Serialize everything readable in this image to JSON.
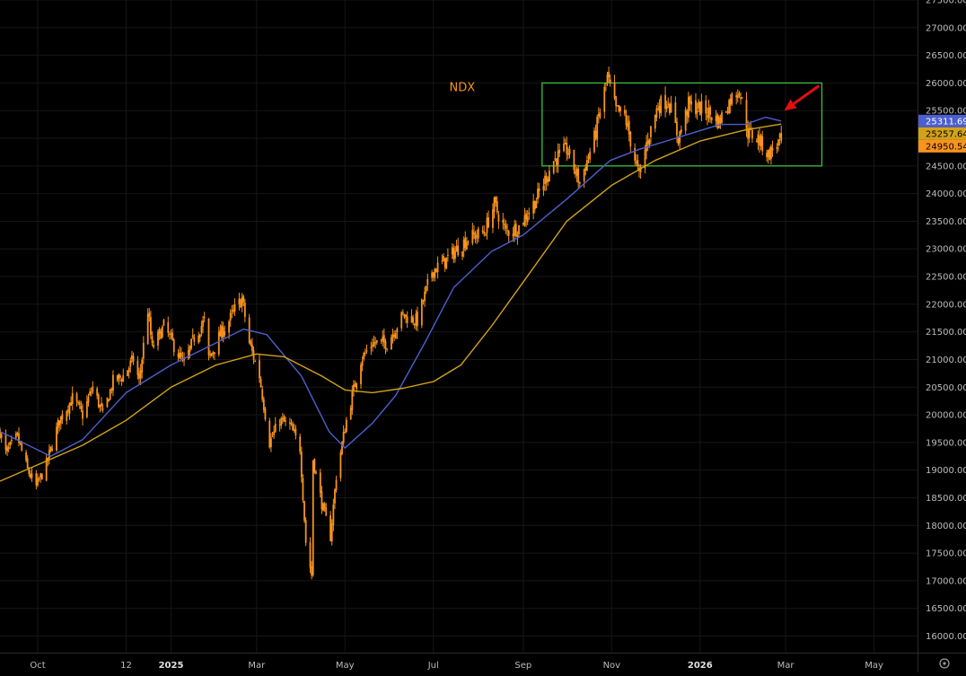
{
  "chart_data": {
    "type": "candlestick",
    "title": "NDX",
    "ylim": [
      15700,
      27500
    ],
    "y_ticks": [
      16000,
      16500,
      17000,
      17500,
      18000,
      18500,
      19000,
      19500,
      20000,
      20500,
      21000,
      21500,
      22000,
      22500,
      23000,
      23500,
      24000,
      24500,
      25000,
      25500,
      26000,
      26500,
      27000,
      27500
    ],
    "y_tick_format": "2dp",
    "x_range": [
      "2024-09-05",
      "2026-05-31"
    ],
    "x_ticks": [
      {
        "date": "2024-10-01",
        "label": "Oct",
        "bold": false
      },
      {
        "date": "2024-12-01",
        "label": "12",
        "bold": false
      },
      {
        "date": "2025-01-01",
        "label": "2025",
        "bold": true
      },
      {
        "date": "2025-03-01",
        "label": "Mar",
        "bold": false
      },
      {
        "date": "2025-05-01",
        "label": "May",
        "bold": false
      },
      {
        "date": "2025-07-01",
        "label": "Jul",
        "bold": false
      },
      {
        "date": "2025-09-01",
        "label": "Sep",
        "bold": false
      },
      {
        "date": "2025-11-01",
        "label": "Nov",
        "bold": false
      },
      {
        "date": "2026-01-01",
        "label": "2026",
        "bold": true
      },
      {
        "date": "2026-03-01",
        "label": "Mar",
        "bold": false
      },
      {
        "date": "2026-05-01",
        "label": "May",
        "bold": false
      }
    ],
    "grid": true,
    "price_anchors": [
      [
        "2024-09-05",
        19700
      ],
      [
        "2024-09-09",
        19300
      ],
      [
        "2024-09-17",
        19600
      ],
      [
        "2024-09-24",
        19000
      ],
      [
        "2024-09-30",
        18700
      ],
      [
        "2024-10-07",
        19100
      ],
      [
        "2024-10-16",
        19900
      ],
      [
        "2024-10-25",
        20300
      ],
      [
        "2024-11-01",
        20000
      ],
      [
        "2024-11-08",
        20500
      ],
      [
        "2024-11-15",
        20000
      ],
      [
        "2024-11-22",
        20600
      ],
      [
        "2024-11-29",
        20700
      ],
      [
        "2024-12-06",
        21000
      ],
      [
        "2024-12-10",
        20600
      ],
      [
        "2024-12-16",
        21900
      ],
      [
        "2024-12-19",
        21200
      ],
      [
        "2024-12-27",
        21600
      ],
      [
        "2025-01-02",
        21300
      ],
      [
        "2025-01-10",
        20900
      ],
      [
        "2025-01-17",
        21400
      ],
      [
        "2025-01-24",
        21700
      ],
      [
        "2025-01-27",
        21000
      ],
      [
        "2025-02-03",
        21400
      ],
      [
        "2025-02-10",
        21700
      ],
      [
        "2025-02-14",
        21900
      ],
      [
        "2025-02-19",
        22100
      ],
      [
        "2025-02-24",
        21300
      ],
      [
        "2025-03-03",
        20700
      ],
      [
        "2025-03-10",
        19500
      ],
      [
        "2025-03-17",
        19900
      ],
      [
        "2025-03-24",
        19800
      ],
      [
        "2025-03-31",
        19400
      ],
      [
        "2025-04-04",
        17700
      ],
      [
        "2025-04-08",
        17100
      ],
      [
        "2025-04-09",
        19200
      ],
      [
        "2025-04-15",
        18400
      ],
      [
        "2025-04-21",
        17800
      ],
      [
        "2025-04-25",
        18900
      ],
      [
        "2025-05-02",
        19900
      ],
      [
        "2025-05-12",
        21000
      ],
      [
        "2025-05-20",
        21300
      ],
      [
        "2025-05-30",
        21300
      ],
      [
        "2025-06-10",
        21800
      ],
      [
        "2025-06-20",
        21700
      ],
      [
        "2025-06-30",
        22600
      ],
      [
        "2025-07-10",
        22800
      ],
      [
        "2025-07-25",
        23200
      ],
      [
        "2025-08-05",
        23300
      ],
      [
        "2025-08-12",
        23800
      ],
      [
        "2025-08-20",
        23300
      ],
      [
        "2025-08-29",
        23400
      ],
      [
        "2025-09-10",
        23900
      ],
      [
        "2025-09-22",
        24600
      ],
      [
        "2025-10-01",
        24800
      ],
      [
        "2025-10-10",
        24200
      ],
      [
        "2025-10-20",
        25000
      ],
      [
        "2025-10-29",
        26100
      ],
      [
        "2025-11-04",
        25500
      ],
      [
        "2025-11-10",
        25400
      ],
      [
        "2025-11-20",
        24300
      ],
      [
        "2025-11-25",
        24900
      ],
      [
        "2025-12-03",
        25600
      ],
      [
        "2025-12-10",
        25700
      ],
      [
        "2025-12-17",
        25000
      ],
      [
        "2025-12-24",
        25600
      ],
      [
        "2026-01-05",
        25500
      ],
      [
        "2026-01-14",
        25300
      ],
      [
        "2026-01-22",
        25700
      ],
      [
        "2026-01-28",
        25900
      ],
      [
        "2026-02-03",
        25100
      ],
      [
        "2026-02-10",
        25000
      ],
      [
        "2026-02-17",
        24700
      ],
      [
        "2026-02-23",
        24900
      ],
      [
        "2026-02-26",
        24950.54
      ]
    ],
    "series": [
      {
        "name": "",
        "role": "ma-blue",
        "color": "#4c5fcf",
        "points": [
          [
            "2024-09-05",
            19700
          ],
          [
            "2024-10-10",
            19250
          ],
          [
            "2024-11-01",
            19550
          ],
          [
            "2024-12-01",
            20400
          ],
          [
            "2025-01-01",
            20900
          ],
          [
            "2025-02-01",
            21300
          ],
          [
            "2025-02-20",
            21550
          ],
          [
            "2025-03-08",
            21450
          ],
          [
            "2025-04-01",
            20700
          ],
          [
            "2025-04-20",
            19700
          ],
          [
            "2025-05-01",
            19400
          ],
          [
            "2025-05-20",
            19850
          ],
          [
            "2025-06-05",
            20350
          ],
          [
            "2025-06-25",
            21300
          ],
          [
            "2025-07-15",
            22300
          ],
          [
            "2025-08-10",
            22950
          ],
          [
            "2025-09-01",
            23250
          ],
          [
            "2025-10-01",
            23900
          ],
          [
            "2025-10-31",
            24600
          ],
          [
            "2025-11-20",
            24800
          ],
          [
            "2025-12-15",
            25000
          ],
          [
            "2026-01-15",
            25250
          ],
          [
            "2026-02-01",
            25250
          ],
          [
            "2026-02-15",
            25380
          ],
          [
            "2026-02-26",
            25311.69
          ]
        ]
      },
      {
        "name": "",
        "role": "ma-gold",
        "color": "#d1a21a",
        "points": [
          [
            "2024-09-05",
            18800
          ],
          [
            "2024-11-01",
            19450
          ],
          [
            "2024-12-01",
            19900
          ],
          [
            "2025-01-01",
            20500
          ],
          [
            "2025-02-01",
            20900
          ],
          [
            "2025-03-01",
            21100
          ],
          [
            "2025-03-20",
            21050
          ],
          [
            "2025-04-15",
            20700
          ],
          [
            "2025-05-01",
            20450
          ],
          [
            "2025-05-20",
            20400
          ],
          [
            "2025-06-10",
            20480
          ],
          [
            "2025-07-01",
            20600
          ],
          [
            "2025-07-20",
            20900
          ],
          [
            "2025-08-10",
            21600
          ],
          [
            "2025-09-01",
            22400
          ],
          [
            "2025-10-01",
            23500
          ],
          [
            "2025-11-01",
            24150
          ],
          [
            "2025-12-01",
            24600
          ],
          [
            "2026-01-01",
            24950
          ],
          [
            "2026-02-01",
            25150
          ],
          [
            "2026-02-26",
            25257.64
          ]
        ]
      }
    ],
    "price_labels": [
      {
        "value": 25311.69,
        "text": "25311.69",
        "bg": "#4c5fcf",
        "fg": "#ffffff"
      },
      {
        "value": 25257.64,
        "text": "25257.64",
        "bg": "#d1a21a",
        "fg": "#000000"
      },
      {
        "value": 24950.54,
        "text": "24950.54",
        "bg": "#f7931e",
        "fg": "#000000"
      }
    ],
    "range_box": {
      "x0": "2025-09-14",
      "x1": "2026-03-26",
      "y0": 24500,
      "y1": 26000,
      "color": "#3fbf3f"
    },
    "arrow": {
      "from": [
        "2026-03-24",
        25950
      ],
      "to": [
        "2026-02-28",
        25500
      ],
      "color": "#e01010"
    },
    "annotation": {
      "text": "NDX",
      "date": "2025-07-12",
      "value": 25850,
      "color": "#f7931e"
    },
    "colors": {
      "candle": "#f7931e",
      "grid": "#161616",
      "axis_text": "#bdbdbd",
      "axis_text_bold": "#e0e0e0",
      "background": "#000000"
    },
    "icons": {
      "settings": "gear-icon"
    }
  }
}
